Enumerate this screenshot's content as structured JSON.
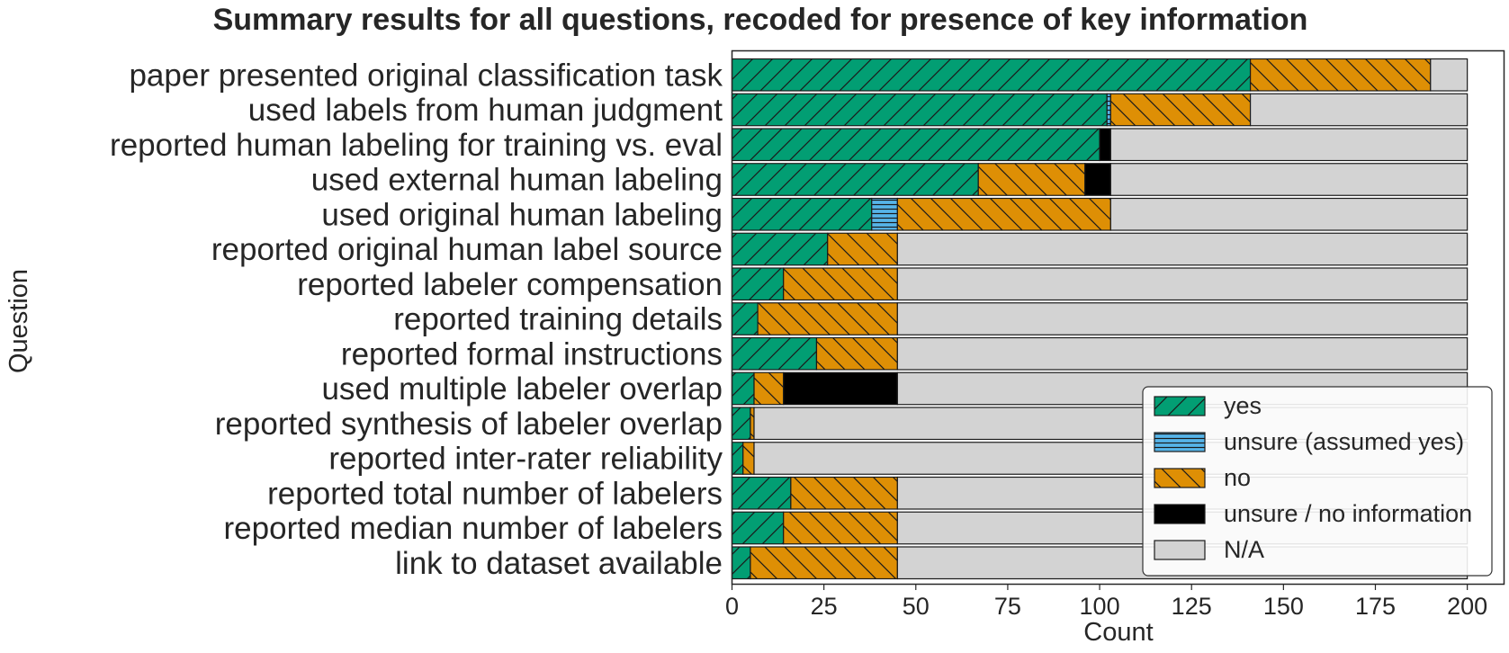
{
  "chart_data": {
    "type": "bar",
    "orientation": "horizontal",
    "stacked": true,
    "title": "Summary results for all questions, recoded for presence of key information",
    "xlabel": "Count",
    "ylabel": "Question",
    "xlim": [
      0,
      210
    ],
    "xticks": [
      0,
      25,
      50,
      75,
      100,
      125,
      150,
      175,
      200
    ],
    "grid": false,
    "legend_position": "bottom-right",
    "categories": [
      "paper presented original classification task",
      "used labels from human judgment",
      "reported human labeling for training vs. eval",
      "used external human labeling",
      "used original human labeling",
      "reported original human label source",
      "reported labeler compensation",
      "reported training details",
      "reported formal instructions",
      "used multiple labeler overlap",
      "reported synthesis of labeler overlap",
      "reported inter-rater reliability",
      "reported total number of labelers",
      "reported median number of labelers",
      "link to dataset available"
    ],
    "series": [
      {
        "name": "yes",
        "color": "#029e73",
        "pattern": "diagonal-forward",
        "values": [
          141,
          102,
          100,
          67,
          38,
          26,
          14,
          7,
          23,
          6,
          5,
          3,
          16,
          14,
          5
        ]
      },
      {
        "name": "unsure (assumed yes)",
        "color": "#56b4e9",
        "pattern": "horizontal",
        "values": [
          0,
          1,
          0,
          0,
          7,
          0,
          0,
          0,
          0,
          0,
          0,
          0,
          0,
          0,
          0
        ]
      },
      {
        "name": "no",
        "color": "#de8f05",
        "pattern": "diagonal-back",
        "values": [
          49,
          38,
          0,
          29,
          58,
          19,
          31,
          38,
          22,
          8,
          1,
          3,
          29,
          31,
          40
        ]
      },
      {
        "name": "unsure / no information",
        "color": "#000000",
        "pattern": "none",
        "values": [
          0,
          0,
          3,
          7,
          0,
          0,
          0,
          0,
          0,
          31,
          0,
          0,
          0,
          0,
          0
        ]
      },
      {
        "name": "N/A",
        "color": "#d3d3d3",
        "pattern": "none",
        "values": [
          10,
          59,
          97,
          97,
          97,
          155,
          155,
          155,
          155,
          155,
          194,
          194,
          155,
          155,
          155
        ]
      }
    ]
  }
}
